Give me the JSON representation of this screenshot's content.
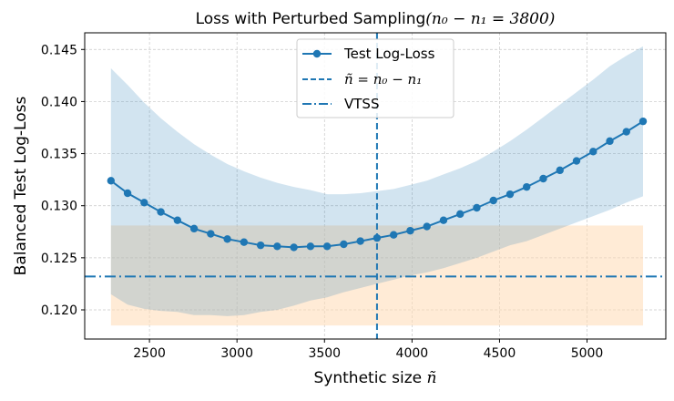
{
  "chart_data": {
    "type": "line",
    "title": "Loss with Perturbed Sampling",
    "title_math": "(n₀ − n₁ = 3800)",
    "xlabel": "Synthetic size ",
    "xlabel_var": "ñ",
    "ylabel": "Balanced Test Log-Loss",
    "xlim": [
      2130,
      5450
    ],
    "ylim": [
      0.1172,
      0.1466
    ],
    "grid": true,
    "legend_position": "top-center",
    "x_ticks": [
      2500,
      3000,
      3500,
      4000,
      4500,
      5000
    ],
    "y_ticks": [
      0.12,
      0.125,
      0.13,
      0.135,
      0.14,
      0.145
    ],
    "series": [
      {
        "name": "Test Log-Loss",
        "color": "#1f77b4",
        "x": [
          2280,
          2375,
          2470,
          2565,
          2660,
          2755,
          2850,
          2945,
          3040,
          3135,
          3230,
          3325,
          3420,
          3515,
          3610,
          3705,
          3800,
          3895,
          3990,
          4085,
          4180,
          4275,
          4370,
          4465,
          4560,
          4655,
          4750,
          4845,
          4940,
          5035,
          5130,
          5225,
          5320
        ],
        "y": [
          0.1324,
          0.1312,
          0.1303,
          0.1294,
          0.1286,
          0.1278,
          0.1273,
          0.1268,
          0.1265,
          0.1262,
          0.1261,
          0.126,
          0.1261,
          0.1261,
          0.1263,
          0.1266,
          0.1269,
          0.1272,
          0.1276,
          0.128,
          0.1286,
          0.1292,
          0.1298,
          0.1305,
          0.1311,
          0.1318,
          0.1326,
          0.1334,
          0.1343,
          0.1352,
          0.1362,
          0.1371,
          0.1381
        ],
        "band_upper": [
          0.1432,
          0.1416,
          0.1399,
          0.1384,
          0.1371,
          0.1359,
          0.1349,
          0.134,
          0.1333,
          0.1327,
          0.1322,
          0.1318,
          0.1315,
          0.1311,
          0.1311,
          0.1312,
          0.1314,
          0.1316,
          0.132,
          0.1324,
          0.133,
          0.1336,
          0.1343,
          0.1352,
          0.1362,
          0.1373,
          0.1385,
          0.1397,
          0.1409,
          0.1421,
          0.1434,
          0.1444,
          0.1453
        ],
        "band_lower": [
          0.1215,
          0.1205,
          0.1201,
          0.1199,
          0.1198,
          0.1195,
          0.1195,
          0.1194,
          0.1195,
          0.1198,
          0.12,
          0.1204,
          0.1209,
          0.1212,
          0.1217,
          0.1221,
          0.1225,
          0.1229,
          0.1233,
          0.1236,
          0.124,
          0.1245,
          0.125,
          0.1256,
          0.1262,
          0.1266,
          0.1272,
          0.1278,
          0.1284,
          0.129,
          0.1296,
          0.1303,
          0.1309
        ],
        "band_color": "#1f77b4"
      },
      {
        "name": "VTSS band",
        "color": "#ffdab4",
        "x_range": [
          2280,
          5320
        ],
        "y_range": [
          0.1185,
          0.1281
        ]
      }
    ],
    "reference_lines": [
      {
        "name": "ñ = n₀ − n₁",
        "orientation": "vertical",
        "value": 3800,
        "style": "dashed",
        "color": "#1f77b4"
      },
      {
        "name": "VTSS",
        "orientation": "horizontal",
        "value": 0.1232,
        "style": "dashdot",
        "color": "#1f77b4"
      }
    ],
    "legend": [
      {
        "label": "Test Log-Loss",
        "style": "line-marker"
      },
      {
        "label": "ñ = n₀ − n₁",
        "style": "dashed"
      },
      {
        "label": "VTSS",
        "style": "dashdot"
      }
    ]
  }
}
